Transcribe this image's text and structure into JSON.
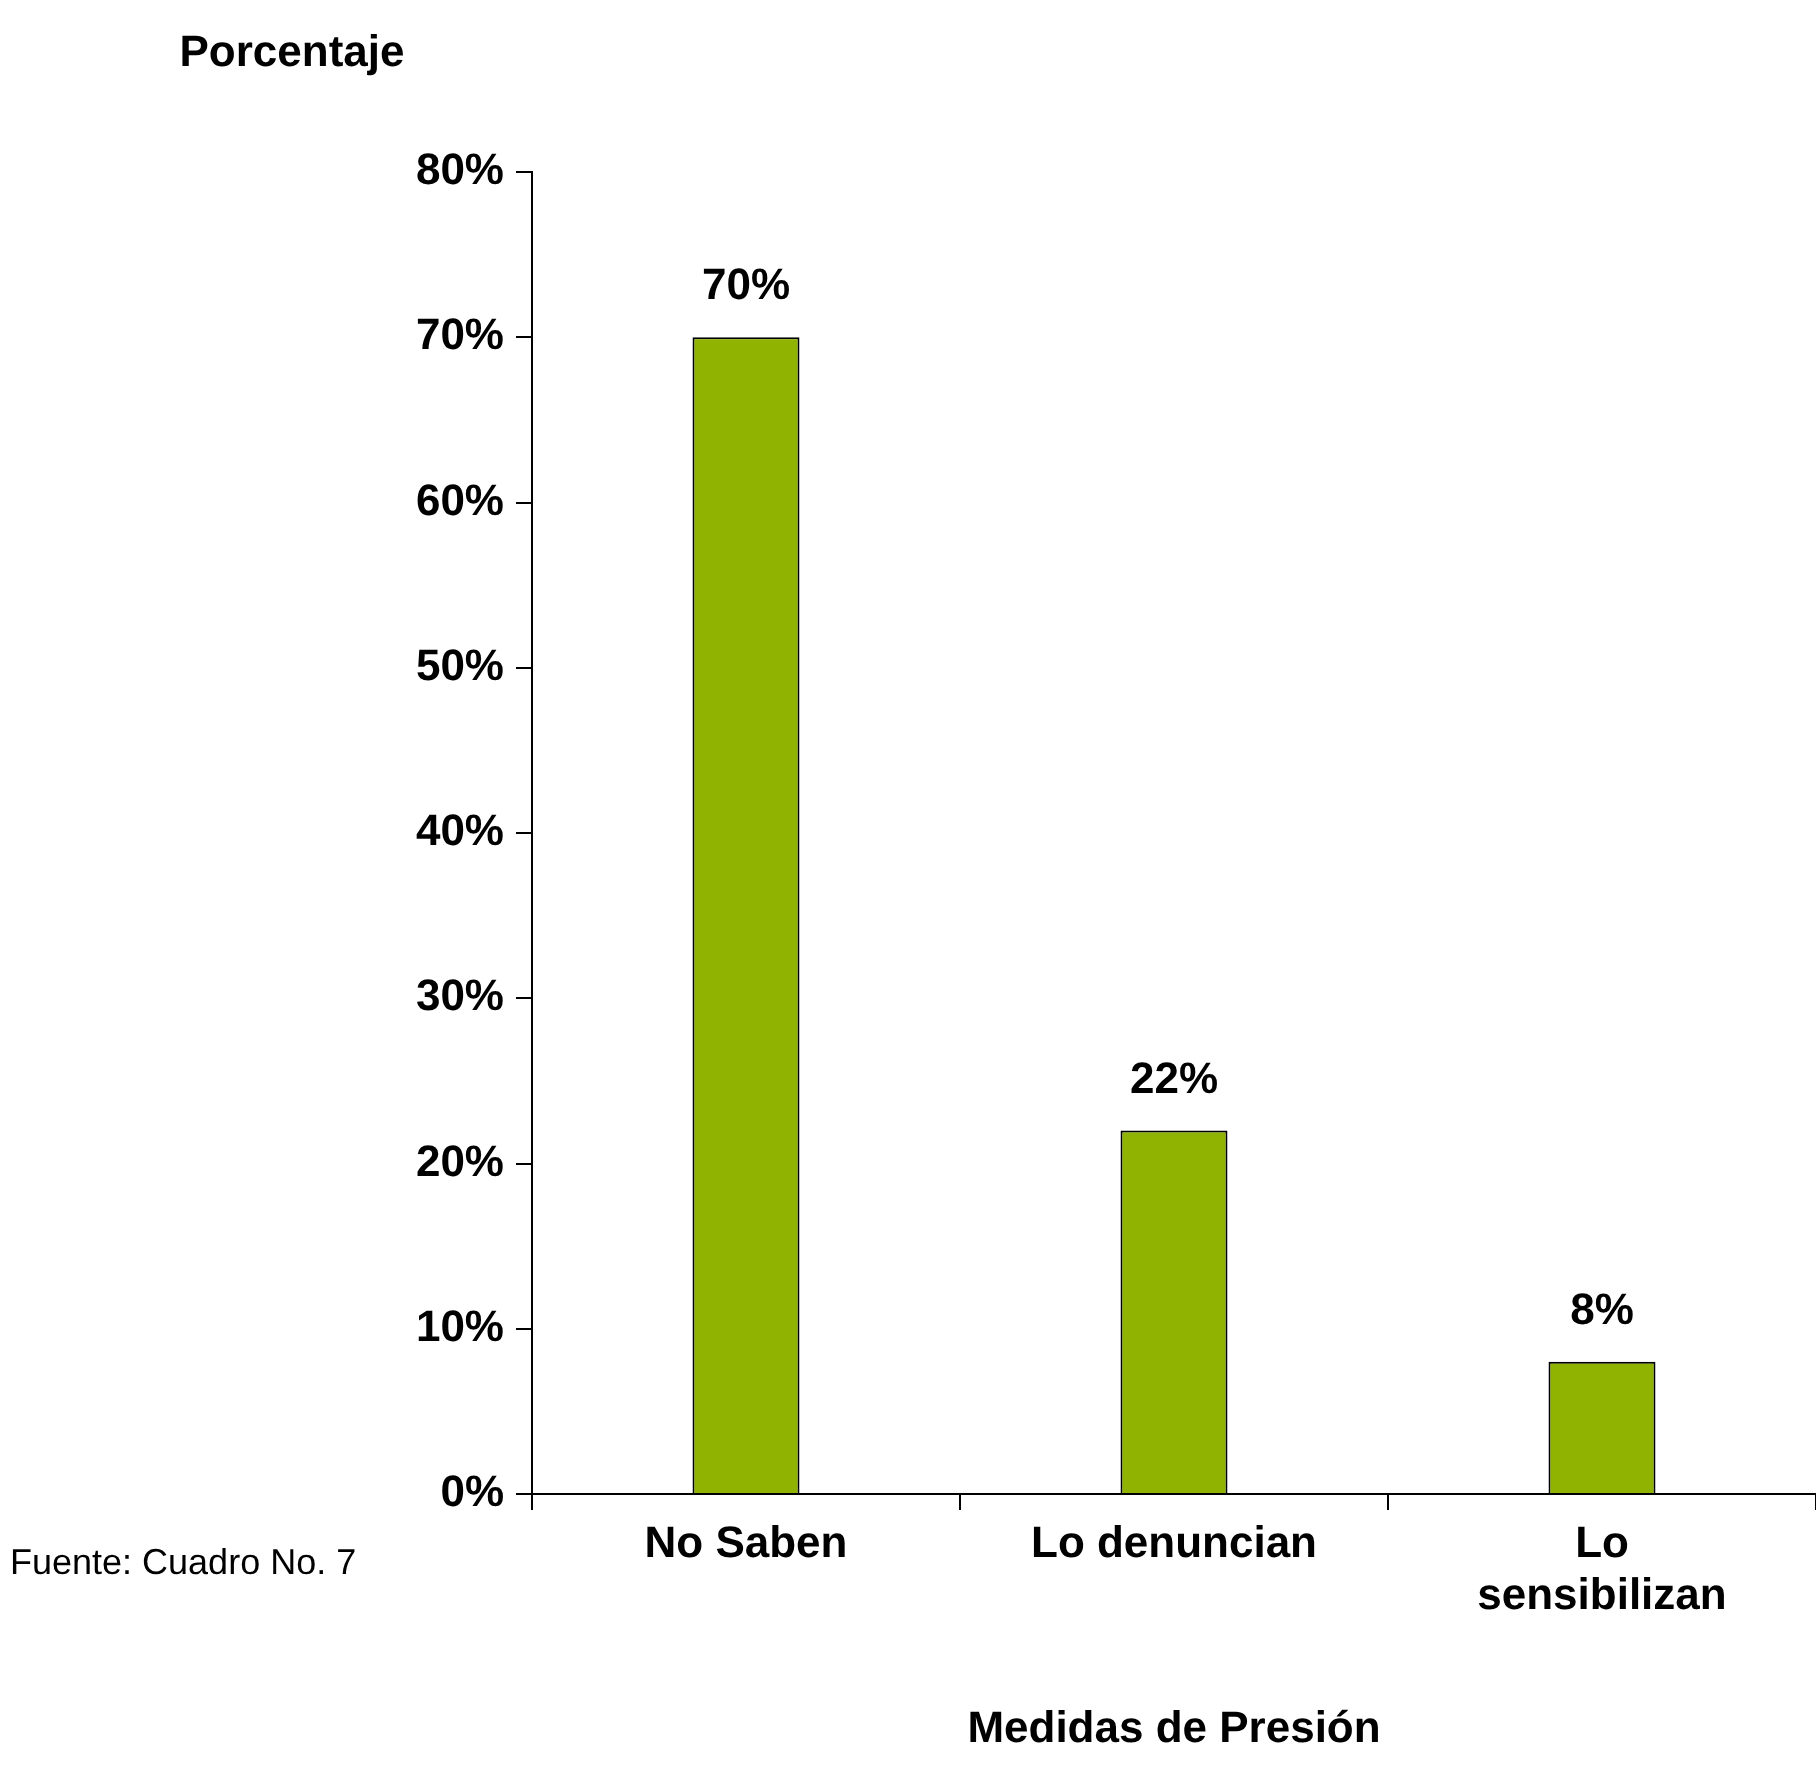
{
  "chart_data": {
    "type": "bar",
    "ylabel": "Porcentaje",
    "xlabel": "Medidas de Presión",
    "categories": [
      "No Saben",
      "Lo denuncian",
      "Lo sensibilizan"
    ],
    "values": [
      70,
      22,
      8
    ],
    "color": "#8fb300",
    "value_labels": [
      "70%",
      "22%",
      "8%"
    ],
    "ylim": [
      0,
      80
    ],
    "yticks": [
      {
        "value": 0,
        "label": "0%"
      },
      {
        "value": 10,
        "label": "10%"
      },
      {
        "value": 20,
        "label": "20%"
      },
      {
        "value": 30,
        "label": "30%"
      },
      {
        "value": 40,
        "label": "40%"
      },
      {
        "value": 50,
        "label": "50%"
      },
      {
        "value": 60,
        "label": "60%"
      },
      {
        "value": 70,
        "label": "70%"
      },
      {
        "value": 80,
        "label": "80%"
      }
    ],
    "grid": false,
    "legend": false,
    "annotations": [
      "Fuente: Cuadro No. 7"
    ]
  }
}
